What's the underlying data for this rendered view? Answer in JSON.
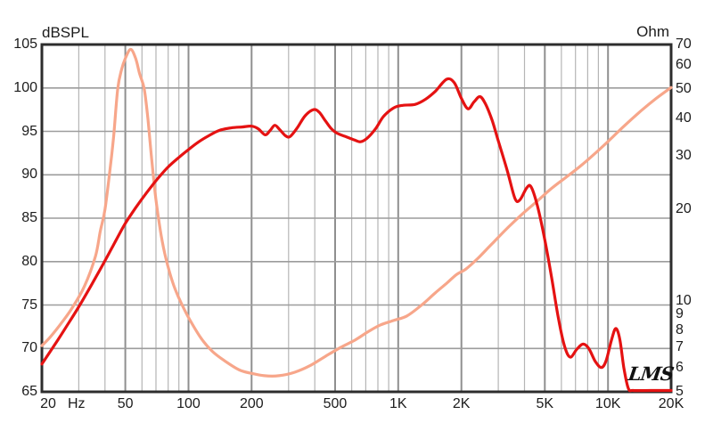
{
  "page": {
    "background": "#ffffff"
  },
  "labels": {
    "left_axis_title": "dBSPL",
    "right_axis_title": "Ohm",
    "x_unit": "Hz",
    "logo": "LMS"
  },
  "colors": {
    "spl_curve": "#e51212",
    "impedance_curve": "#f7a68a",
    "grid_minor": "#b5b5b5",
    "grid_major": "#8f8f8f",
    "grid_horizontal": "#9c9c9c",
    "frame": "#2d2d2d",
    "text": "#1c1c1c"
  },
  "chart_data": {
    "type": "line",
    "title": "",
    "x_axis": {
      "scale": "log",
      "min": 20,
      "max": 20000,
      "unit": "Hz",
      "tick_labels": [
        {
          "f": 20,
          "label": "20"
        },
        {
          "f": 50,
          "label": "50"
        },
        {
          "f": 100,
          "label": "100"
        },
        {
          "f": 200,
          "label": "200"
        },
        {
          "f": 500,
          "label": "500"
        },
        {
          "f": 1000,
          "label": "1K"
        },
        {
          "f": 2000,
          "label": "2K"
        },
        {
          "f": 5000,
          "label": "5K"
        },
        {
          "f": 10000,
          "label": "10K"
        },
        {
          "f": 20000,
          "label": "20K"
        }
      ]
    },
    "y_left": {
      "label": "dBSPL",
      "scale": "linear",
      "min": 65,
      "max": 105,
      "step": 5,
      "ticks": [
        105,
        100,
        95,
        90,
        85,
        80,
        75,
        70,
        65
      ]
    },
    "y_right": {
      "label": "Ohm",
      "scale": "log",
      "min": 5,
      "max": 70,
      "ticks": [
        70,
        60,
        50,
        40,
        30,
        20,
        10,
        9,
        8,
        7,
        6,
        5
      ]
    },
    "grid": "on",
    "legend": "none",
    "series": [
      {
        "name": "dBSPL",
        "axis": "left",
        "color": "#e51212",
        "points": [
          [
            20,
            68.2
          ],
          [
            23,
            70.4
          ],
          [
            26,
            72.4
          ],
          [
            30,
            74.8
          ],
          [
            35,
            77.6
          ],
          [
            40,
            80.1
          ],
          [
            45,
            82.4
          ],
          [
            50,
            84.4
          ],
          [
            56,
            86.2
          ],
          [
            63,
            87.9
          ],
          [
            71,
            89.5
          ],
          [
            80,
            90.9
          ],
          [
            90,
            92.0
          ],
          [
            100,
            92.9
          ],
          [
            112,
            93.8
          ],
          [
            125,
            94.5
          ],
          [
            140,
            95.1
          ],
          [
            160,
            95.4
          ],
          [
            180,
            95.5
          ],
          [
            200,
            95.6
          ],
          [
            215,
            95.3
          ],
          [
            232,
            94.6
          ],
          [
            245,
            95.1
          ],
          [
            258,
            95.7
          ],
          [
            272,
            95.2
          ],
          [
            290,
            94.5
          ],
          [
            305,
            94.4
          ],
          [
            330,
            95.4
          ],
          [
            360,
            96.8
          ],
          [
            395,
            97.5
          ],
          [
            420,
            97.2
          ],
          [
            450,
            96.2
          ],
          [
            480,
            95.3
          ],
          [
            510,
            94.8
          ],
          [
            560,
            94.4
          ],
          [
            620,
            94.0
          ],
          [
            660,
            93.8
          ],
          [
            710,
            94.2
          ],
          [
            780,
            95.3
          ],
          [
            850,
            96.7
          ],
          [
            950,
            97.7
          ],
          [
            1050,
            98.0
          ],
          [
            1200,
            98.1
          ],
          [
            1350,
            98.7
          ],
          [
            1500,
            99.6
          ],
          [
            1700,
            101.0
          ],
          [
            1850,
            100.6
          ],
          [
            2000,
            98.8
          ],
          [
            2150,
            97.6
          ],
          [
            2300,
            98.4
          ],
          [
            2450,
            99.0
          ],
          [
            2600,
            98.2
          ],
          [
            2800,
            96.3
          ],
          [
            3000,
            93.9
          ],
          [
            3300,
            90.6
          ],
          [
            3600,
            87.3
          ],
          [
            3800,
            87.1
          ],
          [
            4100,
            88.5
          ],
          [
            4300,
            88.6
          ],
          [
            4600,
            86.5
          ],
          [
            5000,
            82.5
          ],
          [
            5400,
            78.0
          ],
          [
            5800,
            73.5
          ],
          [
            6200,
            70.3
          ],
          [
            6600,
            69.0
          ],
          [
            7100,
            69.9
          ],
          [
            7600,
            70.5
          ],
          [
            8100,
            70.0
          ],
          [
            8700,
            68.5
          ],
          [
            9300,
            67.8
          ],
          [
            9800,
            68.6
          ],
          [
            10400,
            71.0
          ],
          [
            10900,
            72.3
          ],
          [
            11400,
            71.0
          ],
          [
            11900,
            67.8
          ],
          [
            12500,
            65.4
          ],
          [
            13200,
            65.15
          ],
          [
            16000,
            65.15
          ],
          [
            20000,
            65.15
          ]
        ]
      },
      {
        "name": "Ohm",
        "axis": "right",
        "color": "#f7a68a",
        "points": [
          [
            20,
            7.1
          ],
          [
            22,
            7.6
          ],
          [
            25,
            8.5
          ],
          [
            28,
            9.5
          ],
          [
            32,
            11.2
          ],
          [
            36,
            14.0
          ],
          [
            38,
            17.0
          ],
          [
            40,
            20.0
          ],
          [
            42.5,
            28.0
          ],
          [
            44,
            35.0
          ],
          [
            46,
            50.0
          ],
          [
            48,
            58.0
          ],
          [
            50,
            63.0
          ],
          [
            53,
            67.5
          ],
          [
            56,
            63.0
          ],
          [
            58.5,
            56.0
          ],
          [
            61.5,
            50.0
          ],
          [
            64,
            40.0
          ],
          [
            67,
            28.5
          ],
          [
            70,
            21.5
          ],
          [
            74,
            16.5
          ],
          [
            78,
            13.8
          ],
          [
            84,
            11.5
          ],
          [
            90,
            10.2
          ],
          [
            100,
            8.8
          ],
          [
            115,
            7.5
          ],
          [
            130,
            6.8
          ],
          [
            150,
            6.3
          ],
          [
            175,
            5.9
          ],
          [
            200,
            5.75
          ],
          [
            230,
            5.65
          ],
          [
            270,
            5.65
          ],
          [
            320,
            5.8
          ],
          [
            380,
            6.1
          ],
          [
            450,
            6.55
          ],
          [
            530,
            7.0
          ],
          [
            620,
            7.4
          ],
          [
            720,
            7.9
          ],
          [
            820,
            8.3
          ],
          [
            950,
            8.6
          ],
          [
            1100,
            8.9
          ],
          [
            1300,
            9.7
          ],
          [
            1500,
            10.6
          ],
          [
            1700,
            11.4
          ],
          [
            1900,
            12.2
          ],
          [
            2100,
            12.7
          ],
          [
            2400,
            13.8
          ],
          [
            2800,
            15.4
          ],
          [
            3300,
            17.3
          ],
          [
            3900,
            19.3
          ],
          [
            4600,
            21.3
          ],
          [
            5400,
            23.5
          ],
          [
            6300,
            25.5
          ],
          [
            7300,
            27.6
          ],
          [
            8500,
            30.2
          ],
          [
            10000,
            33.5
          ],
          [
            12000,
            37.8
          ],
          [
            14500,
            42.5
          ],
          [
            17000,
            46.5
          ],
          [
            20000,
            50.5
          ]
        ]
      }
    ]
  }
}
